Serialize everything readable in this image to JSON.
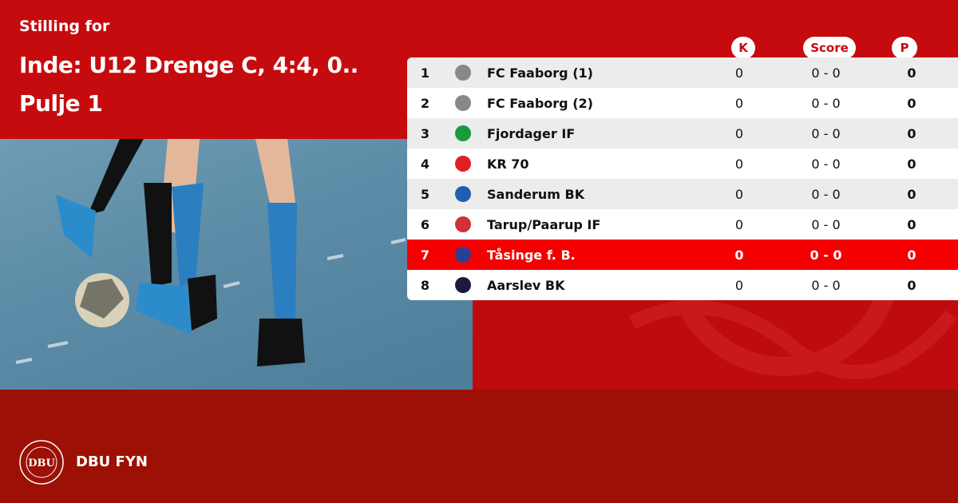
{
  "header": {
    "subtitle": "Stilling for",
    "title_line1": "Inde: U12 Drenge C, 4:4, 0..",
    "title_line2": "Pulje 1"
  },
  "columns": {
    "k": "K",
    "score": "Score",
    "p": "P"
  },
  "rows": [
    {
      "pos": "1",
      "team": "FC Faaborg (1)",
      "k": "0",
      "score": "0 - 0",
      "p": "0",
      "crest": "#888888"
    },
    {
      "pos": "2",
      "team": "FC Faaborg (2)",
      "k": "0",
      "score": "0 - 0",
      "p": "0",
      "crest": "#888888"
    },
    {
      "pos": "3",
      "team": "Fjordager IF",
      "k": "0",
      "score": "0 - 0",
      "p": "0",
      "crest": "#1a9a3a"
    },
    {
      "pos": "4",
      "team": "KR 70",
      "k": "0",
      "score": "0 - 0",
      "p": "0",
      "crest": "#e02020"
    },
    {
      "pos": "5",
      "team": "Sanderum BK",
      "k": "0",
      "score": "0 - 0",
      "p": "0",
      "crest": "#1f5fb0"
    },
    {
      "pos": "6",
      "team": "Tarup/Paarup IF",
      "k": "0",
      "score": "0 - 0",
      "p": "0",
      "crest": "#d0303a"
    },
    {
      "pos": "7",
      "team": "Tåsinge  f. B.",
      "k": "0",
      "score": "0 - 0",
      "p": "0",
      "crest": "#2a3f8f",
      "highlight": true
    },
    {
      "pos": "8",
      "team": "Aarslev BK",
      "k": "0",
      "score": "0 - 0",
      "p": "0",
      "crest": "#1a1a40"
    }
  ],
  "footer": {
    "brand": "DBU FYN",
    "logo_text": "DBU DANSK BOLDSPIL-UNION 1889"
  },
  "colors": {
    "primary": "#c60b0e",
    "footer": "#9c1006",
    "highlight": "#f50000"
  }
}
